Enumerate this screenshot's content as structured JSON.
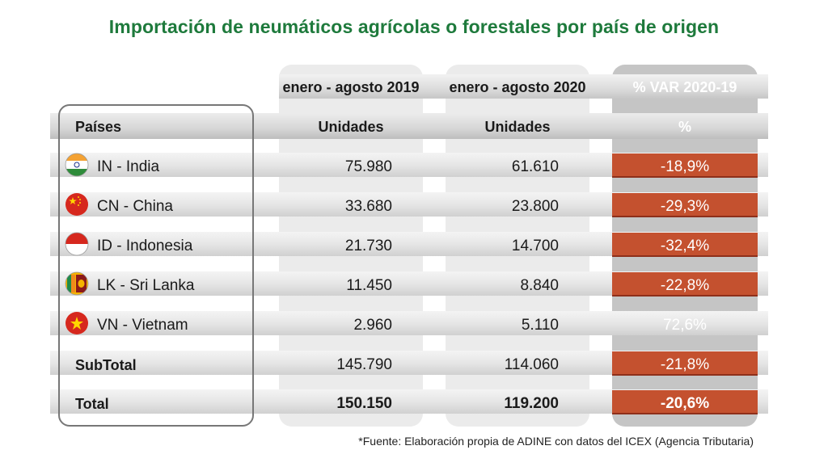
{
  "title": "Importación de neumáticos agrícolas o forestales por país de origen",
  "columns": {
    "period_2019": "enero - agosto 2019",
    "period_2020": "enero - agosto 2020",
    "variation": "% VAR 2020-19",
    "countries": "Países",
    "units_2019": "Unidades",
    "units_2020": "Unidades",
    "percent": "%"
  },
  "rows": [
    {
      "flag": "india-flag-icon",
      "country": "IN - India",
      "y2019": "75.980",
      "y2020": "61.610",
      "var": "-18,9%",
      "highlight": true
    },
    {
      "flag": "china-flag-icon",
      "country": "CN - China",
      "y2019": "33.680",
      "y2020": "23.800",
      "var": "-29,3%",
      "highlight": true
    },
    {
      "flag": "indonesia-flag-icon",
      "country": "ID - Indonesia",
      "y2019": "21.730",
      "y2020": "14.700",
      "var": "-32,4%",
      "highlight": true
    },
    {
      "flag": "sri-lanka-flag-icon",
      "country": "LK - Sri Lanka",
      "y2019": "11.450",
      "y2020": "8.840",
      "var": "-22,8%",
      "highlight": true
    },
    {
      "flag": "vietnam-flag-icon",
      "country": "VN - Vietnam",
      "y2019": "2.960",
      "y2020": "5.110",
      "var": "72,6%",
      "highlight": false
    }
  ],
  "subtotal": {
    "label": "SubTotal",
    "y2019": "145.790",
    "y2020": "114.060",
    "var": "-21,8%"
  },
  "total": {
    "label": "Total",
    "y2019": "150.150",
    "y2020": "119.200",
    "var": "-20,6%"
  },
  "footnote": "*Fuente: Elaboración propia de ADINE con datos del ICEX (Agencia Tributaria)",
  "colors": {
    "title": "#1e7a3c",
    "negative_highlight": "#c4512f"
  }
}
